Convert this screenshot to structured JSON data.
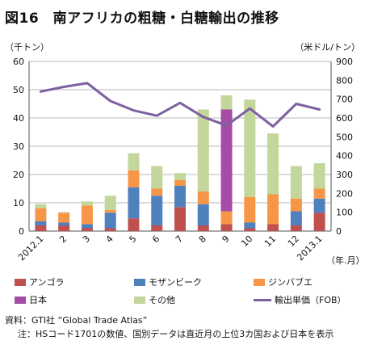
{
  "title": "図16　南アフリカの粗糖・白糖輸出の推移",
  "left_axis_unit": "（千トン）",
  "right_axis_unit": "（米ドル/トン）",
  "x_axis_unit": "（年.月）",
  "source": "資料：GTI社 “Global Trade Atlas”",
  "note": "注：HSコード1701の数値、国別データは直近月の上位3カ国および日本を表示",
  "colors": {
    "angola": "#c0504d",
    "mozambique": "#4f81bd",
    "zimbabwe": "#f79646",
    "japan": "#a64ca6",
    "other": "#c3d69b",
    "price": "#7d60a0"
  },
  "chart_data": {
    "type": "bar",
    "categories": [
      "2012.1",
      "2",
      "3",
      "4",
      "5",
      "6",
      "7",
      "8",
      "9",
      "10",
      "11",
      "12",
      "2013.1"
    ],
    "series": [
      {
        "name": "アンゴラ",
        "key": "angola",
        "values": [
          2,
          2,
          1,
          1,
          4.5,
          2,
          8.5,
          2,
          2.5,
          1,
          2.5,
          2,
          6.5
        ]
      },
      {
        "name": "モザンビーク",
        "key": "mozambique",
        "values": [
          1.5,
          1,
          1.5,
          5.5,
          11,
          10.5,
          7.5,
          7.5,
          0,
          2,
          0,
          5,
          5
        ]
      },
      {
        "name": "ジンバブエ",
        "key": "zimbabwe",
        "values": [
          4.5,
          3.5,
          6.5,
          1,
          6,
          2.5,
          2,
          4.5,
          4.5,
          9,
          10.5,
          4.5,
          3.5
        ]
      },
      {
        "name": "日本",
        "key": "japan",
        "values": [
          0,
          0,
          0,
          0,
          0,
          0,
          0,
          0,
          36,
          0,
          0,
          0,
          0
        ]
      },
      {
        "name": "その他",
        "key": "other",
        "values": [
          1.5,
          0.2,
          1.5,
          5,
          6,
          8,
          2.5,
          29,
          5,
          34.5,
          21.5,
          11.5,
          9
        ]
      }
    ],
    "line": {
      "name": "輸出単価（FOB）",
      "values": [
        740,
        765,
        785,
        690,
        640,
        612,
        680,
        605,
        560,
        650,
        555,
        675,
        645
      ]
    },
    "ylim_left": [
      0,
      60
    ],
    "yticks_left": [
      0,
      10,
      20,
      30,
      40,
      50,
      60
    ],
    "ylim_right": [
      0,
      900
    ],
    "yticks_right": [
      0,
      100,
      200,
      300,
      400,
      500,
      600,
      700,
      800,
      900
    ]
  }
}
